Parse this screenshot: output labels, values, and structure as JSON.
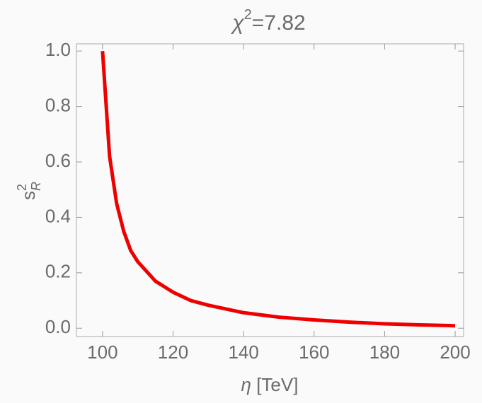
{
  "chart_data": {
    "type": "line",
    "title": {
      "base": "χ",
      "sup": "2",
      "rest": "=7.82"
    },
    "xlabel": {
      "symbol": "η",
      "unit": "[TeV]"
    },
    "ylabel": {
      "base": "s",
      "sup": "2",
      "sub": "R"
    },
    "x": [
      100,
      102,
      104,
      106,
      108,
      110,
      115,
      120,
      125,
      130,
      140,
      150,
      160,
      170,
      180,
      190,
      200
    ],
    "series": [
      {
        "color": "#ee0000",
        "values": [
          1.0,
          0.62,
          0.45,
          0.35,
          0.28,
          0.24,
          0.17,
          0.13,
          0.1,
          0.083,
          0.056,
          0.04,
          0.03,
          0.022,
          0.016,
          0.012,
          0.009
        ]
      }
    ],
    "xlim": [
      92.6,
      202.4
    ],
    "ylim": [
      -0.03,
      1.026
    ],
    "xticks": [
      100,
      120,
      140,
      160,
      180,
      200
    ],
    "yticks": [
      {
        "value": 0,
        "label": "0.0"
      },
      0.2,
      0.4,
      0.6,
      0.8,
      {
        "value": 1,
        "label": "1.0"
      }
    ]
  }
}
